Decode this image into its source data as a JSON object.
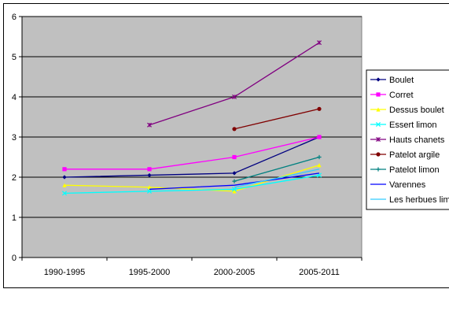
{
  "chart_data": {
    "type": "line",
    "title": "",
    "xlabel": "",
    "ylabel": "",
    "categories": [
      "1990-1995",
      "1995-2000",
      "2000-2005",
      "2005-2011"
    ],
    "ylim": [
      0,
      6
    ],
    "yticks": [
      "0",
      "1",
      "2",
      "3",
      "4",
      "5",
      "6"
    ],
    "grid": "horizontal",
    "plot_background": "#c0c0c0",
    "legend_position": "right",
    "series": [
      {
        "name": "Boulet",
        "color": "#000080",
        "marker": "diamond",
        "values": [
          2.0,
          2.05,
          2.1,
          3.0
        ]
      },
      {
        "name": "Corret",
        "color": "#ff00ff",
        "marker": "square",
        "values": [
          2.2,
          2.2,
          2.5,
          3.0
        ]
      },
      {
        "name": "Dessus boulet",
        "color": "#ffff00",
        "marker": "triangle",
        "values": [
          1.8,
          1.75,
          1.65,
          2.3
        ]
      },
      {
        "name": "Essert limon",
        "color": "#00ffff",
        "marker": "x",
        "values": [
          1.6,
          1.65,
          1.7,
          2.05
        ]
      },
      {
        "name": "Hauts chanets",
        "color": "#800080",
        "marker": "star",
        "values": [
          null,
          3.3,
          4.0,
          5.35
        ]
      },
      {
        "name": "Patelot argile",
        "color": "#800000",
        "marker": "circle",
        "values": [
          null,
          null,
          3.2,
          3.7
        ]
      },
      {
        "name": "Patelot limon",
        "color": "#008080",
        "marker": "plus",
        "values": [
          null,
          null,
          1.9,
          2.5
        ]
      },
      {
        "name": "Varennes",
        "color": "#0000ff",
        "marker": "none",
        "values": [
          null,
          1.7,
          1.8,
          2.1
        ]
      },
      {
        "name": "Les herbues lim",
        "color": "#33ccff",
        "marker": "none",
        "values": [
          null,
          null,
          1.75,
          2.2
        ]
      }
    ]
  }
}
